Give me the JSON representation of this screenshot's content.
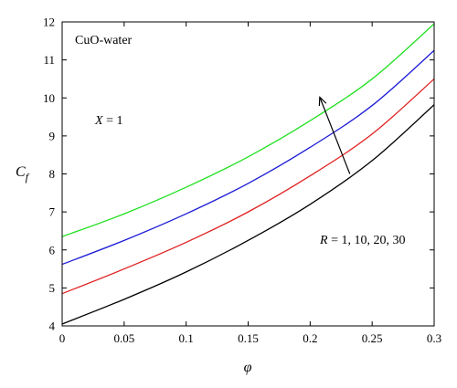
{
  "chart_data": {
    "type": "line",
    "title": "",
    "xlabel": "φ",
    "ylabel_main": "C",
    "ylabel_sub": "f",
    "xlim": [
      0,
      0.3
    ],
    "ylim": [
      4,
      12
    ],
    "xticks": [
      0,
      0.05,
      0.1,
      0.15,
      0.2,
      0.25,
      0.3
    ],
    "xtick_labels": [
      "0",
      "0.05",
      "0.1",
      "0.15",
      "0.2",
      "0.25",
      "0.3"
    ],
    "yticks": [
      4,
      5,
      6,
      7,
      8,
      9,
      10,
      11,
      12
    ],
    "ytick_labels": [
      "4",
      "5",
      "6",
      "7",
      "8",
      "9",
      "10",
      "11",
      "12"
    ],
    "grid": false,
    "annotations": {
      "fluid": "CuO-water",
      "x_param_italic": "X",
      "x_param_value": " = 1",
      "r_param_italic": "R",
      "r_param_value": " = 1, 10, 20, 30"
    },
    "arrow": {
      "from": [
        0.232,
        8.0
      ],
      "to": [
        0.208,
        10.0
      ]
    },
    "series": [
      {
        "color": "#000000",
        "x": [
          0,
          0.05,
          0.1,
          0.15,
          0.2,
          0.25,
          0.3
        ],
        "y": [
          4.05,
          4.7,
          5.42,
          6.25,
          7.2,
          8.35,
          9.82
        ]
      },
      {
        "color": "#e02020",
        "x": [
          0,
          0.05,
          0.1,
          0.15,
          0.2,
          0.25,
          0.3
        ],
        "y": [
          4.85,
          5.5,
          6.2,
          7.0,
          7.95,
          9.05,
          10.5
        ]
      },
      {
        "color": "#1a1ad6",
        "x": [
          0,
          0.05,
          0.1,
          0.15,
          0.2,
          0.25,
          0.3
        ],
        "y": [
          5.62,
          6.25,
          6.95,
          7.75,
          8.7,
          9.8,
          11.25
        ]
      },
      {
        "color": "#22e022",
        "x": [
          0,
          0.05,
          0.1,
          0.15,
          0.2,
          0.25,
          0.3
        ],
        "y": [
          6.35,
          6.95,
          7.65,
          8.45,
          9.4,
          10.5,
          11.95
        ]
      }
    ]
  }
}
